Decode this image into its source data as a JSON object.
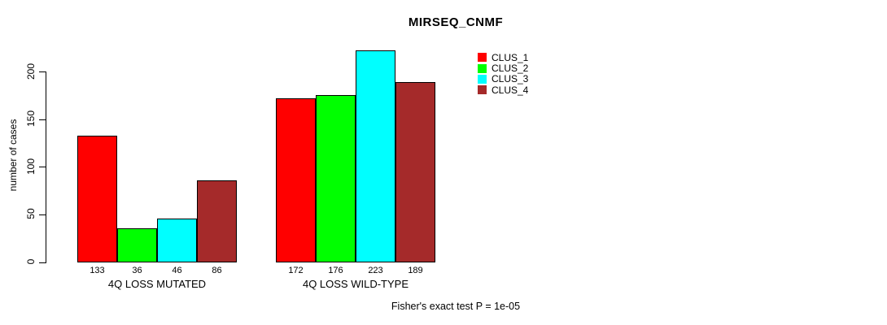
{
  "chart_data": {
    "type": "bar",
    "title": "MIRSEQ_CNMF",
    "ylabel": "number of cases",
    "xlabel": "",
    "categories": [
      "4Q LOSS MUTATED",
      "4Q LOSS WILD-TYPE"
    ],
    "series": [
      {
        "name": "CLUS_1",
        "color": "#FF0000",
        "values": [
          133,
          172
        ]
      },
      {
        "name": "CLUS_2",
        "color": "#00FF00",
        "values": [
          36,
          176
        ]
      },
      {
        "name": "CLUS_3",
        "color": "#00FFFF",
        "values": [
          46,
          223
        ]
      },
      {
        "name": "CLUS_4",
        "color": "#A52A2A",
        "values": [
          86,
          189
        ]
      }
    ],
    "yticks": [
      0,
      50,
      100,
      150,
      200
    ],
    "ylim": [
      0,
      223
    ],
    "grid": false,
    "legend_position": "top-right",
    "bar_value_labels_shown": true,
    "annotation": "Fisher's exact test P = 1e-05"
  }
}
